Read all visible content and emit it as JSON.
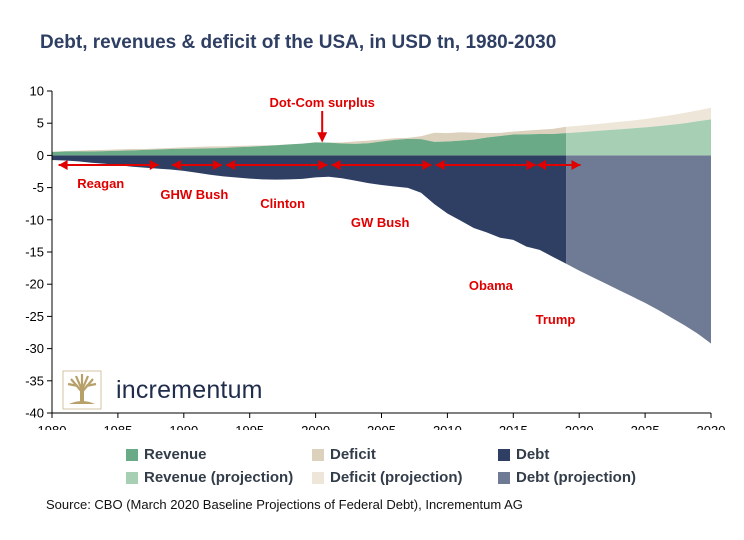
{
  "title": "Debt, revenues & deficit of the USA, in USD tn, 1980-2030",
  "source": "Source: CBO (March 2020 Baseline Projections of Federal Debt), Incrementum AG",
  "logo": {
    "text": "incrementum"
  },
  "colors": {
    "revenue": "#6aaa86",
    "deficit": "#dcd1bc",
    "debt": "#2e3f63",
    "revenue_projection": "#a6cfb4",
    "deficit_projection": "#eee6d8",
    "debt_projection": "#6f7b95",
    "annotation": "#e00000",
    "logo_gold": "#b8a06a"
  },
  "legend": [
    {
      "label": "Revenue",
      "color_key": "revenue"
    },
    {
      "label": "Deficit",
      "color_key": "deficit"
    },
    {
      "label": "Debt",
      "color_key": "debt"
    },
    {
      "label": "Revenue (projection)",
      "color_key": "revenue_projection"
    },
    {
      "label": "Deficit (projection)",
      "color_key": "deficit_projection"
    },
    {
      "label": "Debt (projection)",
      "color_key": "debt_projection"
    }
  ],
  "chart_data": {
    "type": "area",
    "xlim": [
      1980,
      2030
    ],
    "ylim": [
      -40,
      10
    ],
    "x_ticks": [
      1980,
      1985,
      1990,
      1995,
      2000,
      2005,
      2010,
      2015,
      2020,
      2025,
      2030
    ],
    "y_ticks": [
      10,
      5,
      0,
      -5,
      -10,
      -15,
      -20,
      -25,
      -30,
      -35,
      -40
    ],
    "projection_start": 2019,
    "years": [
      1980,
      1981,
      1982,
      1983,
      1984,
      1985,
      1986,
      1987,
      1988,
      1989,
      1990,
      1991,
      1992,
      1993,
      1994,
      1995,
      1996,
      1997,
      1998,
      1999,
      2000,
      2001,
      2002,
      2003,
      2004,
      2005,
      2006,
      2007,
      2008,
      2009,
      2010,
      2011,
      2012,
      2013,
      2014,
      2015,
      2016,
      2017,
      2018,
      2019,
      2020,
      2021,
      2022,
      2023,
      2024,
      2025,
      2026,
      2027,
      2028,
      2029,
      2030
    ],
    "series": [
      {
        "name": "Revenue",
        "values": [
          0.52,
          0.6,
          0.62,
          0.6,
          0.67,
          0.73,
          0.77,
          0.85,
          0.91,
          0.99,
          1.03,
          1.05,
          1.09,
          1.15,
          1.26,
          1.35,
          1.45,
          1.58,
          1.72,
          1.83,
          2.03,
          1.99,
          1.85,
          1.78,
          1.88,
          2.15,
          2.41,
          2.57,
          2.52,
          2.1,
          2.16,
          2.3,
          2.45,
          2.78,
          3.02,
          3.25,
          3.27,
          3.32,
          3.33,
          3.46,
          3.6,
          3.75,
          3.9,
          4.05,
          4.2,
          4.35,
          4.55,
          4.75,
          5.0,
          5.3,
          5.6
        ]
      },
      {
        "name": "Deficit",
        "values": [
          0.07,
          0.08,
          0.13,
          0.21,
          0.19,
          0.21,
          0.22,
          0.15,
          0.16,
          0.15,
          0.22,
          0.27,
          0.29,
          0.26,
          0.2,
          0.16,
          0.11,
          0.02,
          0,
          0,
          0,
          0,
          0.16,
          0.38,
          0.41,
          0.32,
          0.25,
          0.16,
          0.46,
          1.41,
          1.29,
          1.3,
          1.09,
          0.68,
          0.48,
          0.44,
          0.58,
          0.67,
          0.78,
          0.98,
          1.0,
          1.05,
          1.1,
          1.15,
          1.2,
          1.3,
          1.4,
          1.5,
          1.6,
          1.7,
          1.8
        ]
      },
      {
        "name": "Debt",
        "values": [
          -0.71,
          -0.79,
          -0.92,
          -1.14,
          -1.3,
          -1.5,
          -1.74,
          -1.89,
          -2.05,
          -2.19,
          -2.41,
          -2.69,
          -3.0,
          -3.25,
          -3.43,
          -3.6,
          -3.73,
          -3.77,
          -3.72,
          -3.64,
          -3.41,
          -3.32,
          -3.54,
          -3.91,
          -4.3,
          -4.59,
          -4.83,
          -5.04,
          -5.8,
          -7.54,
          -9.02,
          -10.13,
          -11.28,
          -11.98,
          -12.78,
          -13.12,
          -14.17,
          -14.67,
          -15.75,
          -16.8,
          -17.9,
          -18.9,
          -19.9,
          -20.9,
          -21.9,
          -22.9,
          -24.0,
          -25.2,
          -26.4,
          -27.7,
          -29.2
        ]
      }
    ],
    "annotations": [
      {
        "label": "Dot-Com surplus",
        "x": 2000.5,
        "y": 7.5
      },
      {
        "label": "Reagan",
        "x": 1983.7,
        "y": -5.1
      },
      {
        "label": "GHW Bush",
        "x": 1990.8,
        "y": -6.8
      },
      {
        "label": "Clinton",
        "x": 1997.5,
        "y": -8.2
      },
      {
        "label": "GW Bush",
        "x": 2004.9,
        "y": -11.1
      },
      {
        "label": "Obama",
        "x": 2013.3,
        "y": -20.9
      },
      {
        "label": "Trump",
        "x": 2018.2,
        "y": -26.2
      }
    ],
    "arrow_marks": [
      1980.5,
      1988.1,
      1989.1,
      1992.9,
      1993.2,
      2000.9,
      2001.2,
      2008.8,
      2009.1,
      2016.7,
      2016.8,
      2020.1
    ]
  }
}
